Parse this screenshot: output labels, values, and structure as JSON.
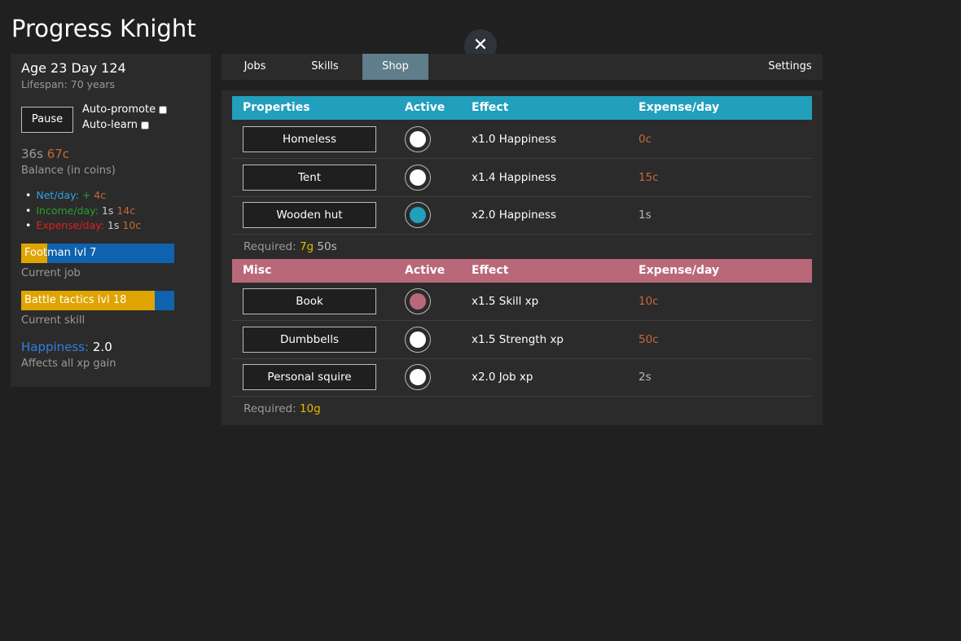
{
  "app": {
    "title": "Progress Knight",
    "close_icon": "close-icon"
  },
  "left": {
    "age": "Age 23 Day 124",
    "lifespan": "Lifespan: 70 years",
    "pause": "Pause",
    "auto_promote": "Auto-promote",
    "auto_learn": "Auto-learn",
    "balance_s": "36s",
    "balance_c": "67c",
    "balance_label": "Balance (in coins)",
    "net_label": "Net/day:",
    "net_sign": "+",
    "net_value": "4c",
    "income_label": "Income/day:",
    "income_s": "1s",
    "income_c": "14c",
    "expense_label": "Expense/day:",
    "expense_s": "1s",
    "expense_c": "10c",
    "job": "Footman lvl 7",
    "job_progress": 0.17,
    "job_label": "Current job",
    "skill": "Battle tactics lvl 18",
    "skill_progress": 0.87,
    "skill_label": "Current skill",
    "happiness_label": "Happiness:",
    "happiness": "2.0",
    "happiness_desc": "Affects all xp gain"
  },
  "tabs": {
    "jobs": "Jobs",
    "skills": "Skills",
    "shop": "Shop",
    "settings": "Settings",
    "active": "Shop"
  },
  "colors": {
    "properties": "#229fbd",
    "misc": "#b9687a",
    "yellow": "#e0a400",
    "blue": "#0f62ad"
  },
  "shop": {
    "properties": {
      "header": [
        "Properties",
        "Active",
        "Effect",
        "Expense/day"
      ],
      "rows": [
        {
          "name": "Homeless",
          "effect": "x1.0 Happiness",
          "expense": "0c",
          "active": false
        },
        {
          "name": "Tent",
          "effect": "x1.4 Happiness",
          "expense": "15c",
          "active": false
        },
        {
          "name": "Wooden hut",
          "effect": "x2.0 Happiness",
          "expense": "1s",
          "active": true
        }
      ],
      "required_label": "Required:",
      "required_g": "7g",
      "required_s": "50s"
    },
    "misc": {
      "header": [
        "Misc",
        "Active",
        "Effect",
        "Expense/day"
      ],
      "rows": [
        {
          "name": "Book",
          "effect": "x1.5 Skill xp",
          "expense": "10c",
          "active": true
        },
        {
          "name": "Dumbbells",
          "effect": "x1.5 Strength xp",
          "expense": "50c",
          "active": false
        },
        {
          "name": "Personal squire",
          "effect": "x2.0 Job xp",
          "expense": "2s",
          "active": false
        }
      ],
      "required_label": "Required:",
      "required_g": "10g"
    }
  }
}
